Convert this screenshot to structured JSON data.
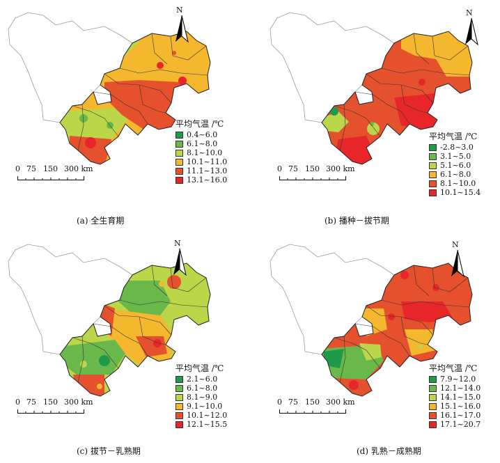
{
  "north_letter": "N",
  "scale": {
    "labels": [
      "0",
      "75",
      "150",
      "300 km"
    ]
  },
  "panels": [
    {
      "caption": "(a)  全生育期",
      "legend_title": "平均气温 /℃",
      "classes": [
        {
          "label": "0.4~6.0",
          "color": "#1e9a4a"
        },
        {
          "label": "6.1~8.0",
          "color": "#6ab84a"
        },
        {
          "label": "8.1~10.0",
          "color": "#bcd64a"
        },
        {
          "label": "10.1~11.0",
          "color": "#f5b72e"
        },
        {
          "label": "11.1~13.0",
          "color": "#e6512d"
        },
        {
          "label": "13.1~16.0",
          "color": "#e8262a"
        }
      ]
    },
    {
      "caption": "(b)  播种－拔节期",
      "legend_title": "平均气温 /℃",
      "classes": [
        {
          "label": "-2.8~3.0",
          "color": "#1e9a4a"
        },
        {
          "label": "3.1~5.0",
          "color": "#6ab84a"
        },
        {
          "label": "5.1~6.0",
          "color": "#bcd64a"
        },
        {
          "label": "6.1~8.0",
          "color": "#f5b72e"
        },
        {
          "label": "8.1~10.0",
          "color": "#e6512d"
        },
        {
          "label": "10.1~15.4",
          "color": "#e8262a"
        }
      ]
    },
    {
      "caption": "(c)  拔节－乳熟期",
      "legend_title": "平均气温 /℃",
      "classes": [
        {
          "label": "2.1~6.0",
          "color": "#1e9a4a"
        },
        {
          "label": "6.1~8.0",
          "color": "#6ab84a"
        },
        {
          "label": "8.1~9.0",
          "color": "#bcd64a"
        },
        {
          "label": "9.1~10.0",
          "color": "#f5b72e"
        },
        {
          "label": "10.1~12.0",
          "color": "#e6512d"
        },
        {
          "label": "12.1~15.5",
          "color": "#e8262a"
        }
      ]
    },
    {
      "caption": "(d)  乳熟－成熟期",
      "legend_title": "平均气温 /℃",
      "classes": [
        {
          "label": "7.9~12.0",
          "color": "#1e9a4a"
        },
        {
          "label": "12.1~14.0",
          "color": "#6ab84a"
        },
        {
          "label": "14.1~15.0",
          "color": "#bcd64a"
        },
        {
          "label": "15.1~16.0",
          "color": "#f5b72e"
        },
        {
          "label": "16.1~17.0",
          "color": "#e6512d"
        },
        {
          "label": "17.1~20.7",
          "color": "#e8262a"
        }
      ]
    }
  ]
}
